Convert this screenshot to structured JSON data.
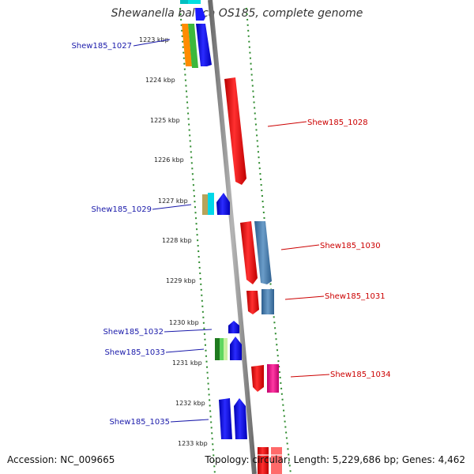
{
  "title": "Shewanella baltica OS185, complete genome",
  "accession_text": "Accession: NC_009665",
  "stats_text": "Topology: circular; Length: 5,229,686 bp; Genes: 4,462",
  "colors": {
    "left_label": "#1a1aaa",
    "right_label": "#cc0000",
    "backbone": "#8a8a8a",
    "track_dots": "#2e8b2e"
  },
  "scale_labels": [
    "1223 kbp",
    "1224 kbp",
    "1225 kbp",
    "1226 kbp",
    "1227 kbp",
    "1228 kbp",
    "1229 kbp",
    "1230 kbp",
    "1231 kbp",
    "1232 kbp",
    "1233 kbp"
  ],
  "gene_labels_left": [
    "Shew185_1027",
    "Shew185_1029",
    "Shew185_1032",
    "Shew185_1033",
    "Shew185_1035"
  ],
  "gene_labels_right": [
    "Shew185_1028",
    "Shew185_1030",
    "Shew185_1031",
    "Shew185_1034"
  ]
}
